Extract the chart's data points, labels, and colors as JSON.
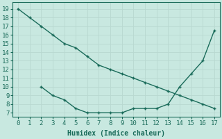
{
  "line1_x": [
    0,
    1,
    2,
    3,
    4,
    5,
    6,
    7,
    8,
    9,
    10,
    11,
    12,
    13,
    14,
    15,
    16,
    17
  ],
  "line1_y": [
    19,
    18,
    17,
    16,
    15,
    14.5,
    13.5,
    12.5,
    12,
    11.5,
    11,
    10.5,
    10,
    9.5,
    9,
    8.5,
    8,
    7.5
  ],
  "line2_x": [
    2,
    3,
    4,
    5,
    6,
    7,
    8,
    9,
    10,
    11,
    12,
    13,
    14,
    15,
    16,
    17
  ],
  "line2_y": [
    10,
    9,
    8.5,
    7.5,
    7,
    7,
    7,
    7,
    7.5,
    7.5,
    7.5,
    8,
    10,
    11.5,
    13,
    16.5
  ],
  "line_color": "#1a6b5a",
  "bg_color": "#c8e8e0",
  "grid_color": "#b8d8d0",
  "xlabel": "Humidex (Indice chaleur)",
  "xlim": [
    -0.5,
    17.5
  ],
  "ylim": [
    6.5,
    19.8
  ],
  "xticks": [
    0,
    1,
    2,
    3,
    4,
    5,
    6,
    7,
    8,
    9,
    10,
    11,
    12,
    13,
    14,
    15,
    16,
    17
  ],
  "yticks": [
    7,
    8,
    9,
    10,
    11,
    12,
    13,
    14,
    15,
    16,
    17,
    18,
    19
  ],
  "label_fontsize": 7,
  "tick_fontsize": 6.5
}
